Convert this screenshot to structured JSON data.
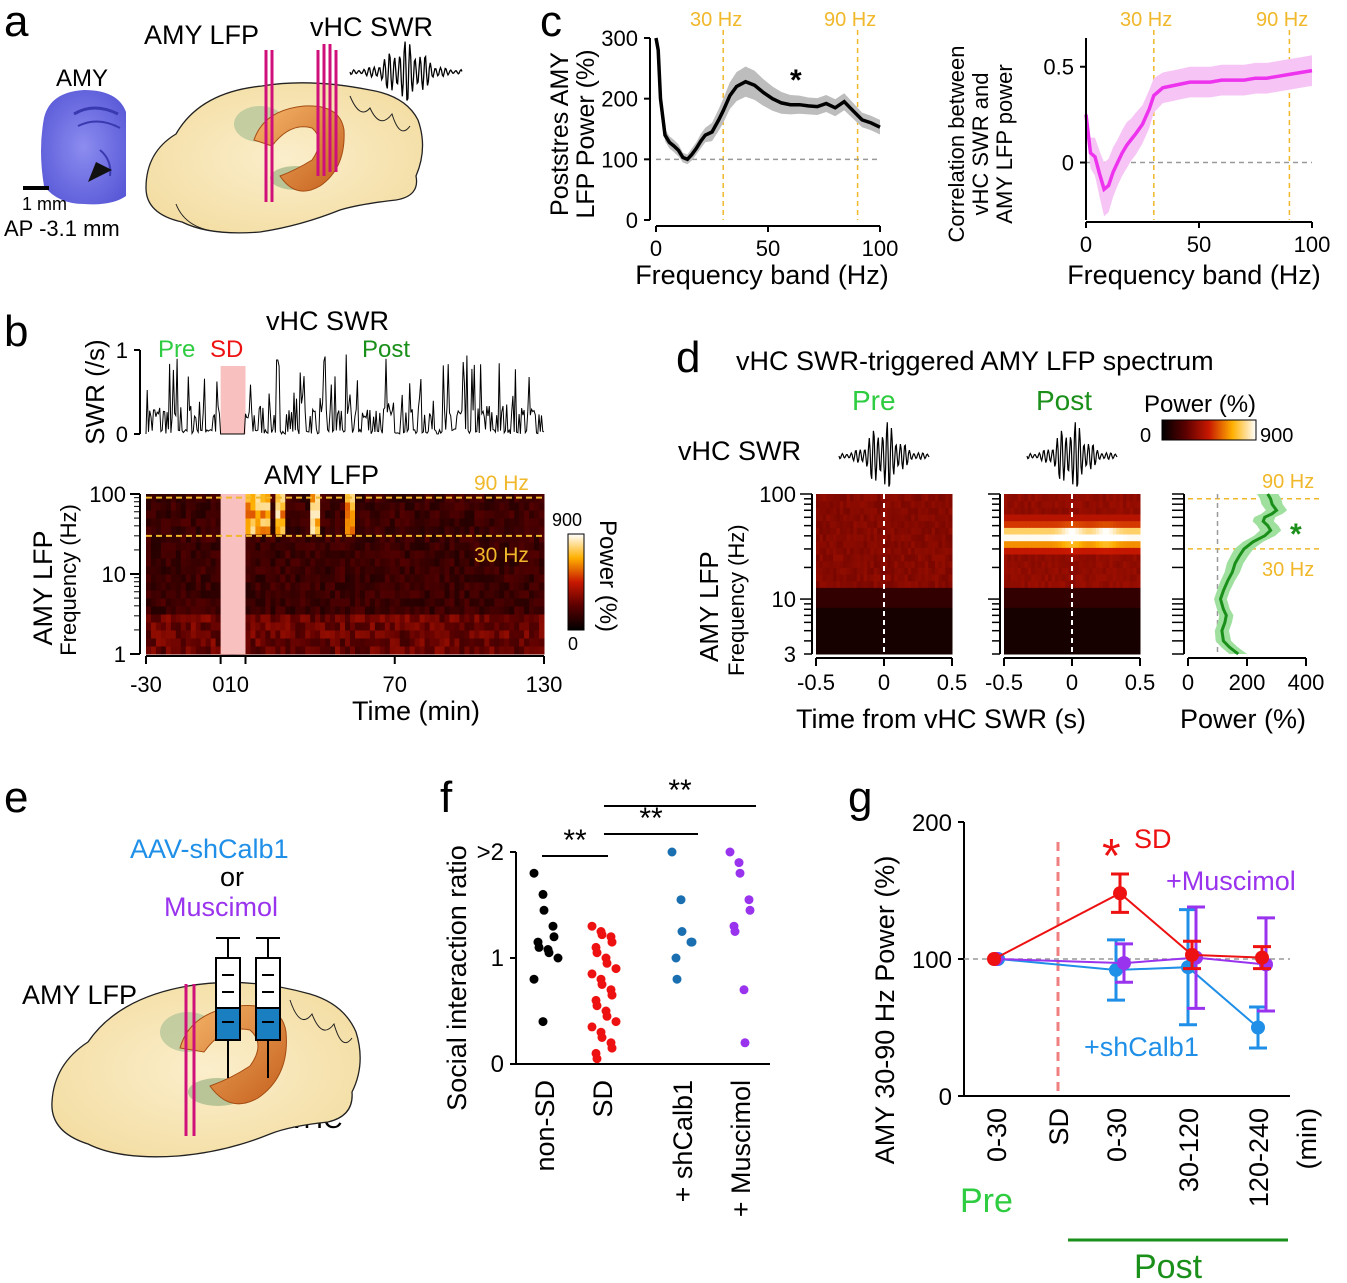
{
  "panel_letters": [
    "a",
    "b",
    "c",
    "d",
    "e",
    "f",
    "g"
  ],
  "colors": {
    "pre": "#2ecc40",
    "post": "#1a8f1a",
    "sd": "#ee1111",
    "cut_lines": "#f0b82a",
    "muscimol": "#9933ee",
    "shcalb1": "#1f8fe8",
    "magenta": "#ee33ee",
    "electrode": "#d0107a",
    "brain": "#f7e7bb",
    "hippocampus": "#e0863a"
  },
  "panel_a": {
    "amy_label": "AMY",
    "scale_label": "1 mm",
    "ap_label": "AP -3.1 mm",
    "amy_lfp_label": "AMY LFP",
    "vhc_swr_label": "vHC SWR",
    "icons": [
      "brain-section-image",
      "brain-3d-image",
      "electrode-icon",
      "swr-trace-icon"
    ]
  },
  "panel_b": {
    "title": "vHC SWR",
    "pre_label": "Pre",
    "sd_label": "SD",
    "post_label": "Post",
    "amy_lfp_title": "AMY LFP",
    "colorbar_label": "Power (%)",
    "colorbar_max": "900",
    "colorbar_min": "0",
    "line90": "90 Hz",
    "line30": "30 Hz"
  },
  "panel_c": {
    "star": "*",
    "line30": "30 Hz",
    "line90": "90 Hz"
  },
  "panel_d": {
    "title": "vHC SWR-triggered AMY LFP spectrum",
    "pre_label": "Pre",
    "post_label": "Post",
    "swr_label": "vHC SWR",
    "colorbar_label": "Power (%)",
    "colorbar_min": "0",
    "colorbar_max": "900",
    "ylabel": [
      "AMY LFP",
      "Frequency (Hz)"
    ],
    "xlabel": "Time from vHC SWR (s)",
    "power_xlabel": "Power (%)",
    "line90": "90 Hz",
    "line30": "30 Hz",
    "star": "*"
  },
  "panel_e": {
    "aav_label": "AAV-shCalb1",
    "or_label": "or",
    "muscimol_label": "Muscimol",
    "amy_lfp_label": "AMY LFP",
    "vhc_label": "vHC",
    "icons": [
      "brain-3d-image",
      "syringe-icon",
      "electrode-icon"
    ]
  },
  "panel_g_labels": {
    "sd_label": "SD",
    "muscimol_label": "+Muscimol",
    "shcalb1_label": "+shCalb1",
    "star": "*",
    "pre_label": "Pre",
    "post_label": "Post",
    "sd_axis_label": "SD"
  },
  "chart_data": [
    {
      "id": "b-swr-rate",
      "type": "line",
      "ylabel": "SWR (/s)",
      "ylim": [
        0,
        1
      ],
      "y_ticks": [
        "0",
        "1"
      ],
      "x_range": [
        -30,
        130
      ],
      "shaded_interval": [
        0,
        10
      ],
      "trace": "dense spiky SWR rate trace, mostly 0-0.4 /s with peaks near 0.9 /s"
    },
    {
      "id": "b-amy-spectrogram",
      "type": "heatmap",
      "ylabel": [
        "AMY LFP",
        "Frequency (Hz)"
      ],
      "xlabel": "Time (min)",
      "y_scale": "log",
      "ylim": [
        1,
        100
      ],
      "y_ticks": [
        "1",
        "10",
        "100"
      ],
      "xlim": [
        -30,
        130
      ],
      "x_ticks": [
        "-30",
        "0",
        "10",
        "70",
        "130"
      ],
      "shaded_interval": [
        0,
        10
      ],
      "hlines_hz": [
        30,
        90
      ],
      "color_range": [
        0,
        900
      ],
      "bright_band_times": [
        12,
        15,
        18,
        24,
        38,
        52
      ]
    },
    {
      "id": "c-power",
      "type": "line",
      "xlabel": "Frequency band (Hz)",
      "ylabel": [
        "Poststres AMY",
        "LFP Power (%)"
      ],
      "xlim": [
        0,
        100
      ],
      "ylim": [
        0,
        300
      ],
      "x_ticks": [
        "0",
        "50",
        "100"
      ],
      "y_ticks": [
        "0",
        "100",
        "200",
        "300"
      ],
      "baseline": 100,
      "vlines_hz": [
        30,
        90
      ],
      "x": [
        0,
        1,
        2,
        4,
        6,
        8,
        10,
        12,
        14,
        16,
        18,
        20,
        22,
        25,
        28,
        30,
        33,
        36,
        40,
        44,
        48,
        52,
        56,
        60,
        64,
        68,
        72,
        76,
        80,
        84,
        88,
        92,
        96,
        100
      ],
      "y": [
        300,
        280,
        200,
        140,
        128,
        122,
        115,
        103,
        100,
        108,
        118,
        130,
        140,
        145,
        165,
        180,
        205,
        220,
        228,
        222,
        210,
        200,
        193,
        190,
        190,
        188,
        187,
        192,
        185,
        195,
        180,
        165,
        160,
        153
      ],
      "sem": [
        0,
        0,
        5,
        10,
        10,
        10,
        10,
        8,
        8,
        10,
        10,
        12,
        12,
        15,
        18,
        20,
        22,
        24,
        25,
        24,
        22,
        20,
        18,
        16,
        15,
        14,
        14,
        14,
        14,
        14,
        13,
        12,
        12,
        12
      ]
    },
    {
      "id": "c-correlation",
      "type": "line",
      "xlabel": "Frequency band (Hz)",
      "ylabel": [
        "Correlation between",
        "vHC SWR and",
        "AMY LFP power"
      ],
      "xlim": [
        0,
        100
      ],
      "ylim": [
        -0.3,
        0.65
      ],
      "x_ticks": [
        "0",
        "50",
        "100"
      ],
      "y_ticks": [
        "0",
        "0.5"
      ],
      "baseline": 0,
      "vlines_hz": [
        30,
        90
      ],
      "x": [
        0,
        2,
        4,
        6,
        8,
        10,
        12,
        14,
        16,
        18,
        20,
        22,
        25,
        28,
        30,
        34,
        38,
        42,
        46,
        50,
        55,
        60,
        65,
        70,
        75,
        80,
        85,
        90,
        95,
        100
      ],
      "y": [
        0.25,
        0.05,
        0.03,
        -0.06,
        -0.14,
        -0.12,
        -0.05,
        0.0,
        0.05,
        0.09,
        0.12,
        0.15,
        0.2,
        0.28,
        0.35,
        0.39,
        0.4,
        0.41,
        0.42,
        0.42,
        0.42,
        0.43,
        0.43,
        0.43,
        0.44,
        0.44,
        0.45,
        0.46,
        0.47,
        0.48
      ],
      "sem": [
        0.05,
        0.08,
        0.1,
        0.12,
        0.14,
        0.14,
        0.13,
        0.12,
        0.12,
        0.12,
        0.11,
        0.11,
        0.1,
        0.1,
        0.09,
        0.08,
        0.08,
        0.08,
        0.08,
        0.08,
        0.08,
        0.08,
        0.08,
        0.08,
        0.08,
        0.08,
        0.08,
        0.08,
        0.08,
        0.08
      ]
    },
    {
      "id": "d-pre-spectrogram",
      "type": "heatmap",
      "xlim": [
        -0.5,
        0.5
      ],
      "x_ticks": [
        "-0.5",
        "0",
        "0.5"
      ],
      "y_scale": "log",
      "ylim": [
        3,
        100
      ],
      "y_ticks": [
        "3",
        "10",
        "100"
      ],
      "color_range": [
        0,
        900
      ],
      "note": "weak uniform power"
    },
    {
      "id": "d-post-spectrogram",
      "type": "heatmap",
      "xlim": [
        -0.5,
        0.5
      ],
      "x_ticks": [
        "-0.5",
        "0",
        "0.5"
      ],
      "y_scale": "log",
      "ylim": [
        3,
        100
      ],
      "y_ticks": [
        "3",
        "10",
        "100"
      ],
      "color_range": [
        0,
        900
      ],
      "note": "strong band 30-60 Hz peaking at 0 s and 0.25 s"
    },
    {
      "id": "d-power-profile",
      "type": "line",
      "xlabel": "Power (%)",
      "xlim": [
        0,
        400
      ],
      "x_ticks": [
        "0",
        "200",
        "400"
      ],
      "y_scale": "log",
      "ylim": [
        3,
        100
      ],
      "baseline": 100,
      "hlines_hz": [
        30,
        90
      ],
      "freq": [
        3,
        3.5,
        4,
        5,
        6,
        7,
        8,
        10,
        12,
        15,
        18,
        22,
        26,
        30,
        35,
        40,
        45,
        50,
        55,
        60,
        65,
        70,
        80,
        90,
        100
      ],
      "power": [
        170,
        140,
        120,
        115,
        125,
        130,
        120,
        110,
        120,
        135,
        150,
        160,
        175,
        190,
        220,
        260,
        280,
        270,
        255,
        260,
        285,
        300,
        285,
        280,
        270
      ],
      "sem": [
        30,
        28,
        26,
        24,
        24,
        24,
        22,
        22,
        22,
        24,
        26,
        28,
        30,
        32,
        34,
        36,
        36,
        36,
        36,
        36,
        36,
        36,
        36,
        36,
        36
      ]
    },
    {
      "id": "f-social",
      "type": "scatter",
      "ylabel": "Social interaction ratio",
      "ylim": [
        0,
        2
      ],
      "y_ticks": [
        "0",
        "1",
        ">2"
      ],
      "categories": [
        "non-SD",
        "SD",
        "+ shCalb1",
        "+ Muscimol"
      ],
      "category_colors": [
        "#000000",
        "#ee1111",
        "#1a6fb0",
        "#9933ee"
      ],
      "values": [
        [
          1.8,
          1.6,
          1.45,
          1.3,
          1.2,
          1.15,
          1.1,
          1.08,
          1.05,
          1.0,
          0.8,
          0.4
        ],
        [
          1.3,
          1.25,
          1.22,
          1.2,
          1.15,
          1.1,
          1.05,
          1.0,
          0.95,
          0.9,
          0.85,
          0.8,
          0.75,
          0.7,
          0.65,
          0.6,
          0.55,
          0.5,
          0.45,
          0.4,
          0.35,
          0.3,
          0.25,
          0.2,
          0.15,
          0.1,
          0.05
        ],
        [
          2.0,
          1.55,
          1.25,
          1.15,
          1.15,
          1.0,
          0.8
        ],
        [
          2.0,
          1.9,
          1.8,
          1.55,
          1.45,
          1.3,
          1.25,
          0.7,
          0.2
        ]
      ],
      "significance": [
        {
          "between": [
            "non-SD",
            "SD"
          ],
          "label": "**"
        },
        {
          "between": [
            "SD",
            "+ shCalb1"
          ],
          "label": "**"
        },
        {
          "between": [
            "SD",
            "+ Muscimol"
          ],
          "label": "**"
        }
      ]
    },
    {
      "id": "g-power",
      "type": "line",
      "ylabel": "AMY 30-90 Hz Power (%)",
      "ylim": [
        0,
        200
      ],
      "y_ticks": [
        "0",
        "100",
        "200"
      ],
      "categories": [
        "0-30",
        "SD",
        "0-30",
        "30-120",
        "120-240"
      ],
      "unit_label": "(min)",
      "baseline": 100,
      "sd_marker_category": "SD",
      "series": [
        {
          "name": "SD",
          "color": "#ee1111",
          "values": [
            100,
            null,
            148,
            103,
            101
          ],
          "err": [
            0,
            null,
            14,
            10,
            8
          ]
        },
        {
          "name": "+Muscimol",
          "color": "#9933ee",
          "values": [
            100,
            null,
            97,
            101,
            96
          ],
          "err": [
            0,
            null,
            14,
            37,
            34
          ]
        },
        {
          "name": "+shCalb1",
          "color": "#1f8fe8",
          "values": [
            100,
            null,
            92,
            94,
            50
          ],
          "err": [
            0,
            null,
            22,
            42,
            15
          ]
        }
      ]
    }
  ]
}
